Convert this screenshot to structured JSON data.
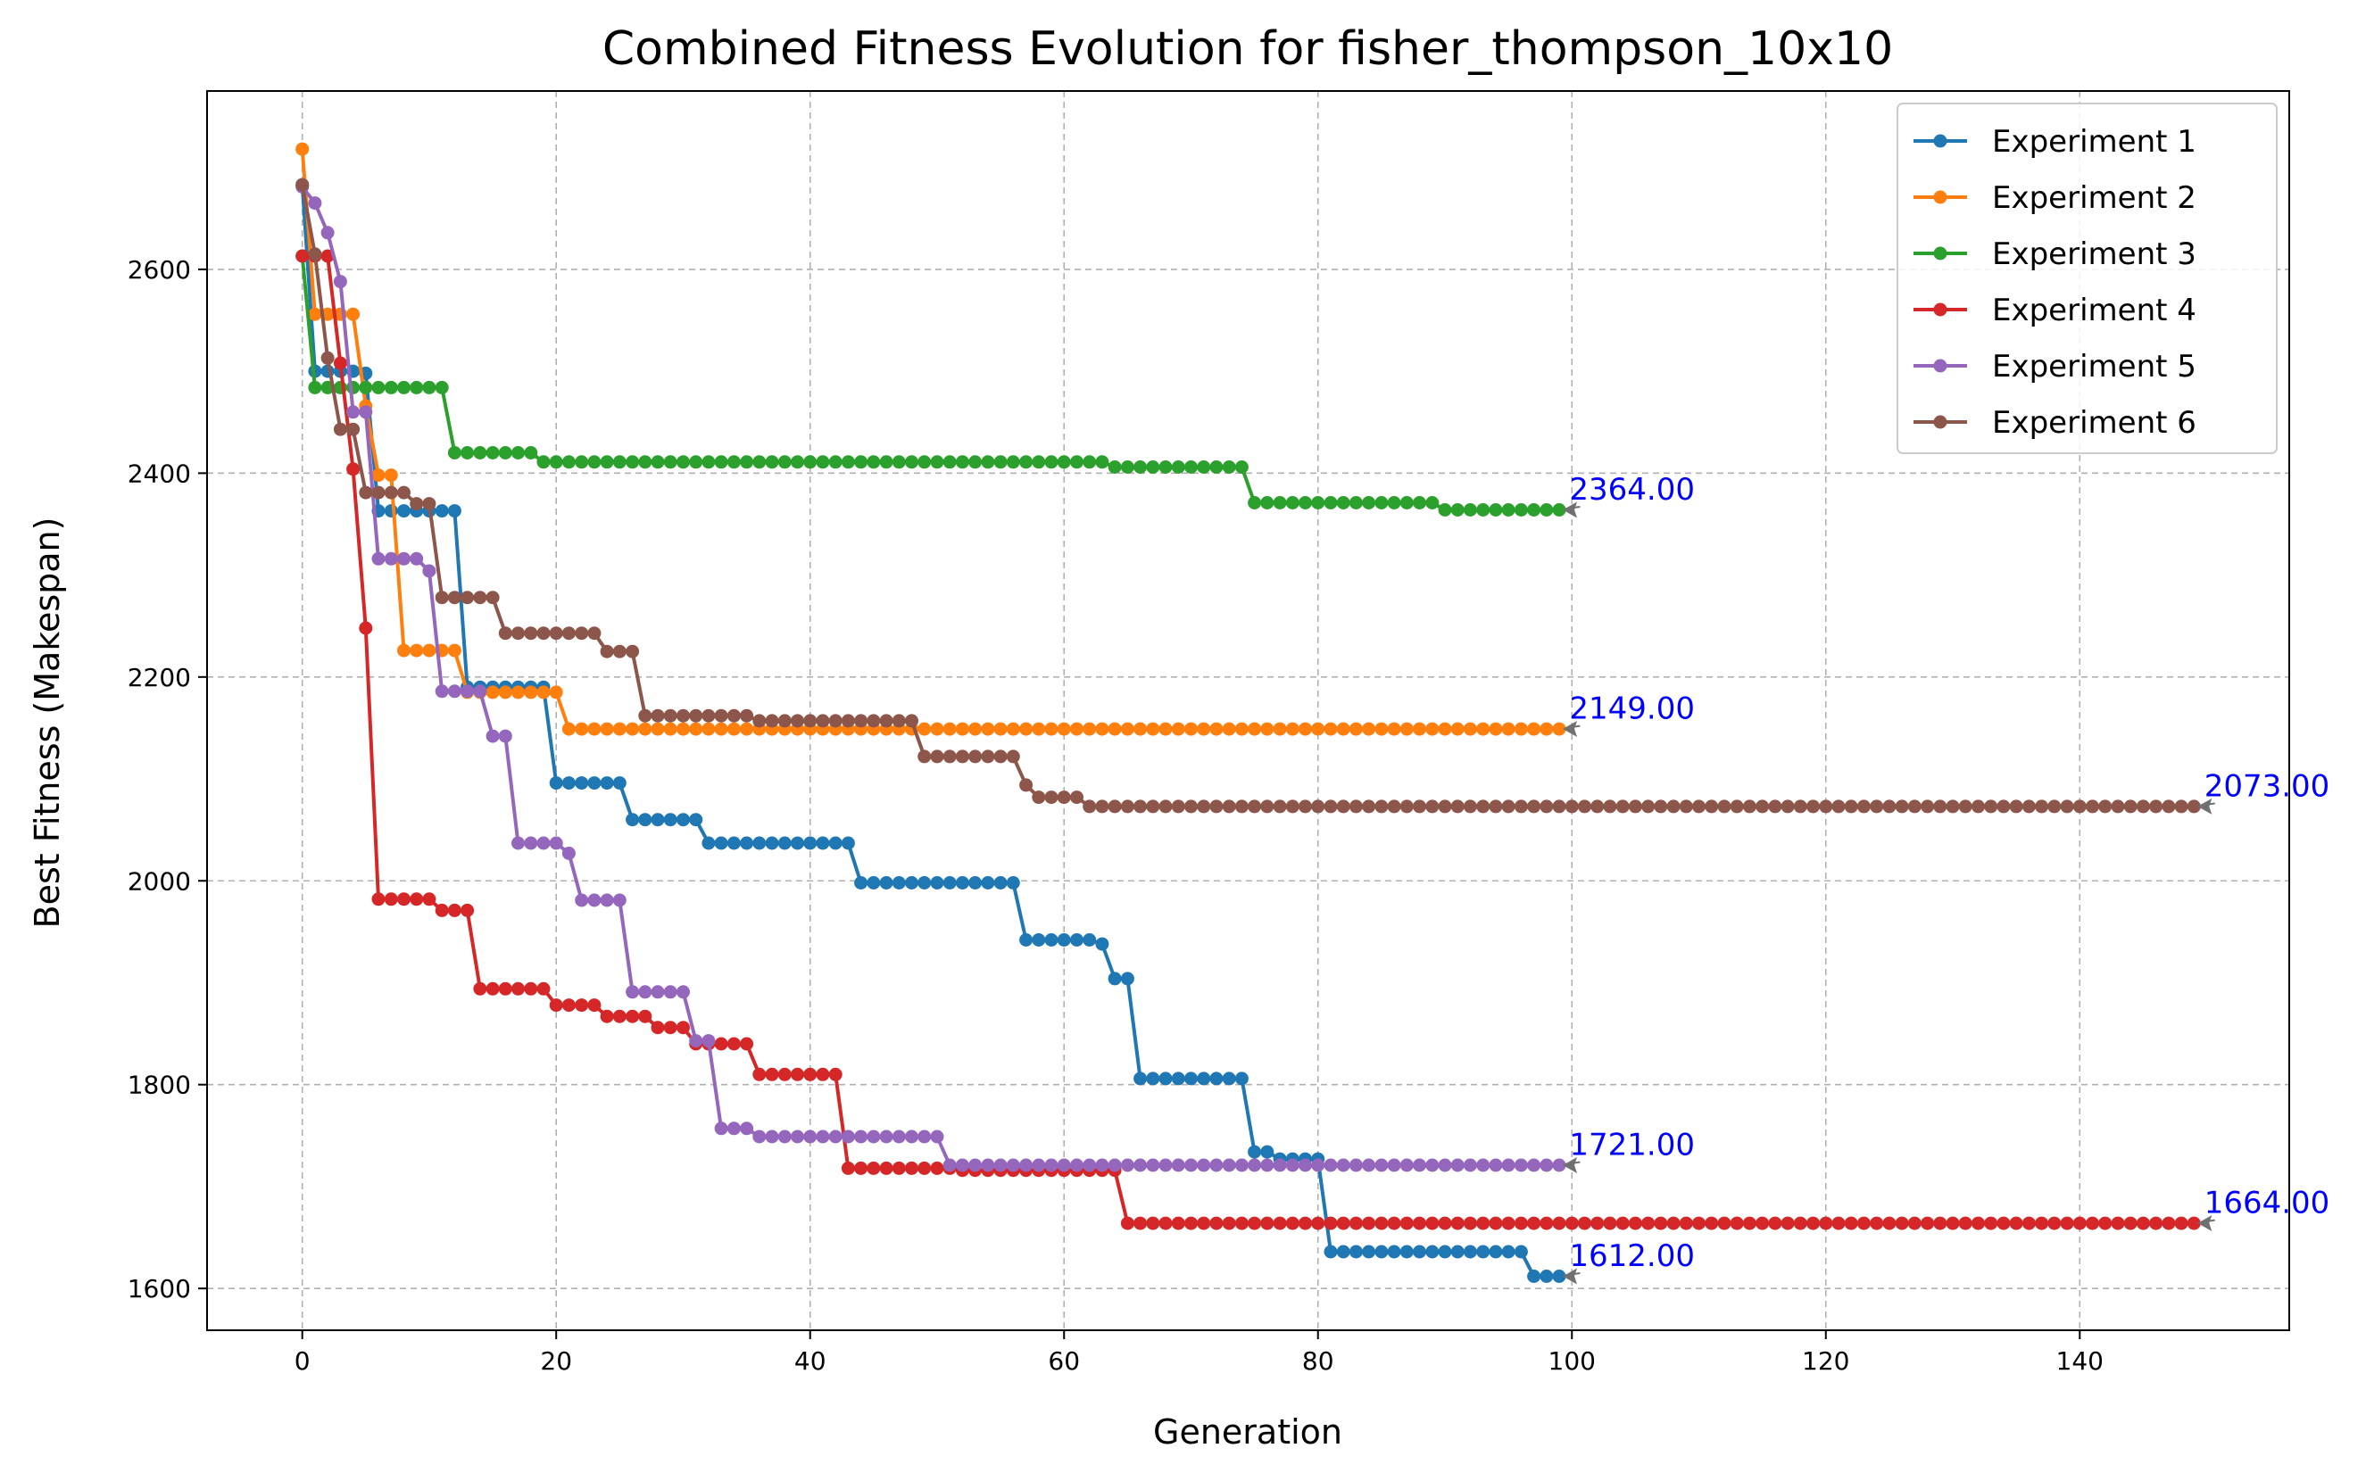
{
  "chart_data": {
    "type": "line",
    "title": "Combined Fitness Evolution for fisher_thompson_10x10",
    "xlabel": "Generation",
    "ylabel": "Best Fitness (Makespan)",
    "xlim": [
      -7.5,
      156.5
    ],
    "ylim": [
      1559,
      2775
    ],
    "xticks": [
      0,
      20,
      40,
      60,
      80,
      100,
      120,
      140
    ],
    "yticks": [
      1600,
      1800,
      2000,
      2200,
      2400,
      2600
    ],
    "grid": true,
    "legend_position": "top-right",
    "annotation_color": "#0000ff",
    "series": [
      {
        "name": "Experiment 1",
        "color": "#1f77b4",
        "generations": 100,
        "steps": [
          [
            0,
            2683
          ],
          [
            1,
            2500
          ],
          [
            5,
            2498
          ],
          [
            6,
            2363
          ],
          [
            13,
            2190
          ],
          [
            20,
            2096
          ],
          [
            26,
            2060
          ],
          [
            32,
            2037
          ],
          [
            44,
            1998
          ],
          [
            57,
            1942
          ],
          [
            63,
            1938
          ],
          [
            64,
            1904
          ],
          [
            66,
            1806
          ],
          [
            75,
            1734
          ],
          [
            77,
            1727
          ],
          [
            81,
            1636
          ],
          [
            97,
            1612
          ]
        ],
        "final_label": "1612.00"
      },
      {
        "name": "Experiment 2",
        "color": "#ff7f0e",
        "generations": 100,
        "steps": [
          [
            0,
            2718
          ],
          [
            1,
            2556
          ],
          [
            5,
            2466
          ],
          [
            6,
            2398
          ],
          [
            8,
            2226
          ],
          [
            13,
            2185
          ],
          [
            21,
            2149
          ]
        ],
        "final_label": "2149.00"
      },
      {
        "name": "Experiment 3",
        "color": "#2ca02c",
        "generations": 100,
        "steps": [
          [
            0,
            2613
          ],
          [
            1,
            2484
          ],
          [
            12,
            2420
          ],
          [
            19,
            2411
          ],
          [
            64,
            2406
          ],
          [
            75,
            2371
          ],
          [
            90,
            2364
          ]
        ],
        "final_label": "2364.00"
      },
      {
        "name": "Experiment 4",
        "color": "#d62728",
        "generations": 150,
        "steps": [
          [
            0,
            2613
          ],
          [
            3,
            2508
          ],
          [
            4,
            2404
          ],
          [
            5,
            2248
          ],
          [
            6,
            1982
          ],
          [
            11,
            1971
          ],
          [
            14,
            1894
          ],
          [
            20,
            1878
          ],
          [
            24,
            1867
          ],
          [
            28,
            1856
          ],
          [
            31,
            1840
          ],
          [
            36,
            1810
          ],
          [
            43,
            1718
          ],
          [
            52,
            1716
          ],
          [
            65,
            1664
          ]
        ],
        "final_label": "1664.00"
      },
      {
        "name": "Experiment 5",
        "color": "#9467bd",
        "generations": 100,
        "steps": [
          [
            0,
            2681
          ],
          [
            1,
            2665
          ],
          [
            2,
            2636
          ],
          [
            3,
            2588
          ],
          [
            4,
            2460
          ],
          [
            6,
            2316
          ],
          [
            10,
            2304
          ],
          [
            11,
            2186
          ],
          [
            14,
            2186
          ],
          [
            15,
            2142
          ],
          [
            17,
            2037
          ],
          [
            21,
            2027
          ],
          [
            22,
            1981
          ],
          [
            25,
            1981
          ],
          [
            26,
            1891
          ],
          [
            31,
            1843
          ],
          [
            33,
            1757
          ],
          [
            36,
            1749
          ],
          [
            51,
            1721
          ]
        ],
        "final_label": "1721.00"
      },
      {
        "name": "Experiment 6",
        "color": "#8c564b",
        "generations": 150,
        "steps": [
          [
            0,
            2683
          ],
          [
            1,
            2615
          ],
          [
            2,
            2513
          ],
          [
            3,
            2443
          ],
          [
            5,
            2381
          ],
          [
            9,
            2370
          ],
          [
            11,
            2278
          ],
          [
            16,
            2243
          ],
          [
            24,
            2225
          ],
          [
            27,
            2162
          ],
          [
            36,
            2157
          ],
          [
            49,
            2122
          ],
          [
            57,
            2094
          ],
          [
            58,
            2082
          ],
          [
            62,
            2073
          ]
        ],
        "final_label": "2073.00"
      }
    ]
  }
}
